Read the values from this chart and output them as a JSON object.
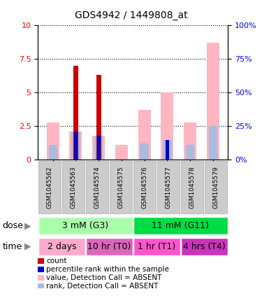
{
  "title": "GDS4942 / 1449808_at",
  "samples": [
    "GSM1045562",
    "GSM1045563",
    "GSM1045574",
    "GSM1045575",
    "GSM1045576",
    "GSM1045577",
    "GSM1045578",
    "GSM1045579"
  ],
  "count_values": [
    0,
    7.0,
    6.3,
    0,
    0,
    0,
    0,
    0
  ],
  "percentile_values": [
    0,
    2.1,
    1.8,
    0,
    0,
    1.5,
    0,
    0
  ],
  "absent_value_values": [
    2.8,
    2.1,
    1.8,
    1.1,
    3.7,
    5.0,
    2.8,
    8.7
  ],
  "absent_rank_values": [
    1.1,
    2.1,
    1.8,
    0,
    1.2,
    1.5,
    1.1,
    2.5
  ],
  "ylim_left": [
    0,
    10
  ],
  "ylim_right": [
    0,
    100
  ],
  "yticks_left": [
    0,
    2.5,
    5.0,
    7.5,
    10
  ],
  "yticks_right": [
    0,
    25,
    50,
    75,
    100
  ],
  "dose_groups": [
    {
      "label": "3 mM (G3)",
      "start": 0,
      "end": 4,
      "color": "#aaffaa"
    },
    {
      "label": "11 mM (G11)",
      "start": 4,
      "end": 8,
      "color": "#00dd44"
    }
  ],
  "time_groups": [
    {
      "label": "2 days",
      "start": 0,
      "end": 2,
      "color": "#ffaacc"
    },
    {
      "label": "10 hr (T0)",
      "start": 2,
      "end": 4,
      "color": "#dd66bb"
    },
    {
      "label": "1 hr (T1)",
      "start": 4,
      "end": 6,
      "color": "#ff55cc"
    },
    {
      "label": "4 hrs (T4)",
      "start": 6,
      "end": 8,
      "color": "#cc33bb"
    }
  ],
  "color_count": "#cc0000",
  "color_percentile": "#0000cc",
  "color_absent_value": "#ffb6c1",
  "color_absent_rank": "#aabbdd",
  "legend_items": [
    {
      "color": "#cc0000",
      "label": "count"
    },
    {
      "color": "#0000cc",
      "label": "percentile rank within the sample"
    },
    {
      "color": "#ffb6c1",
      "label": "value, Detection Call = ABSENT"
    },
    {
      "color": "#aabbdd",
      "label": "rank, Detection Call = ABSENT"
    }
  ]
}
